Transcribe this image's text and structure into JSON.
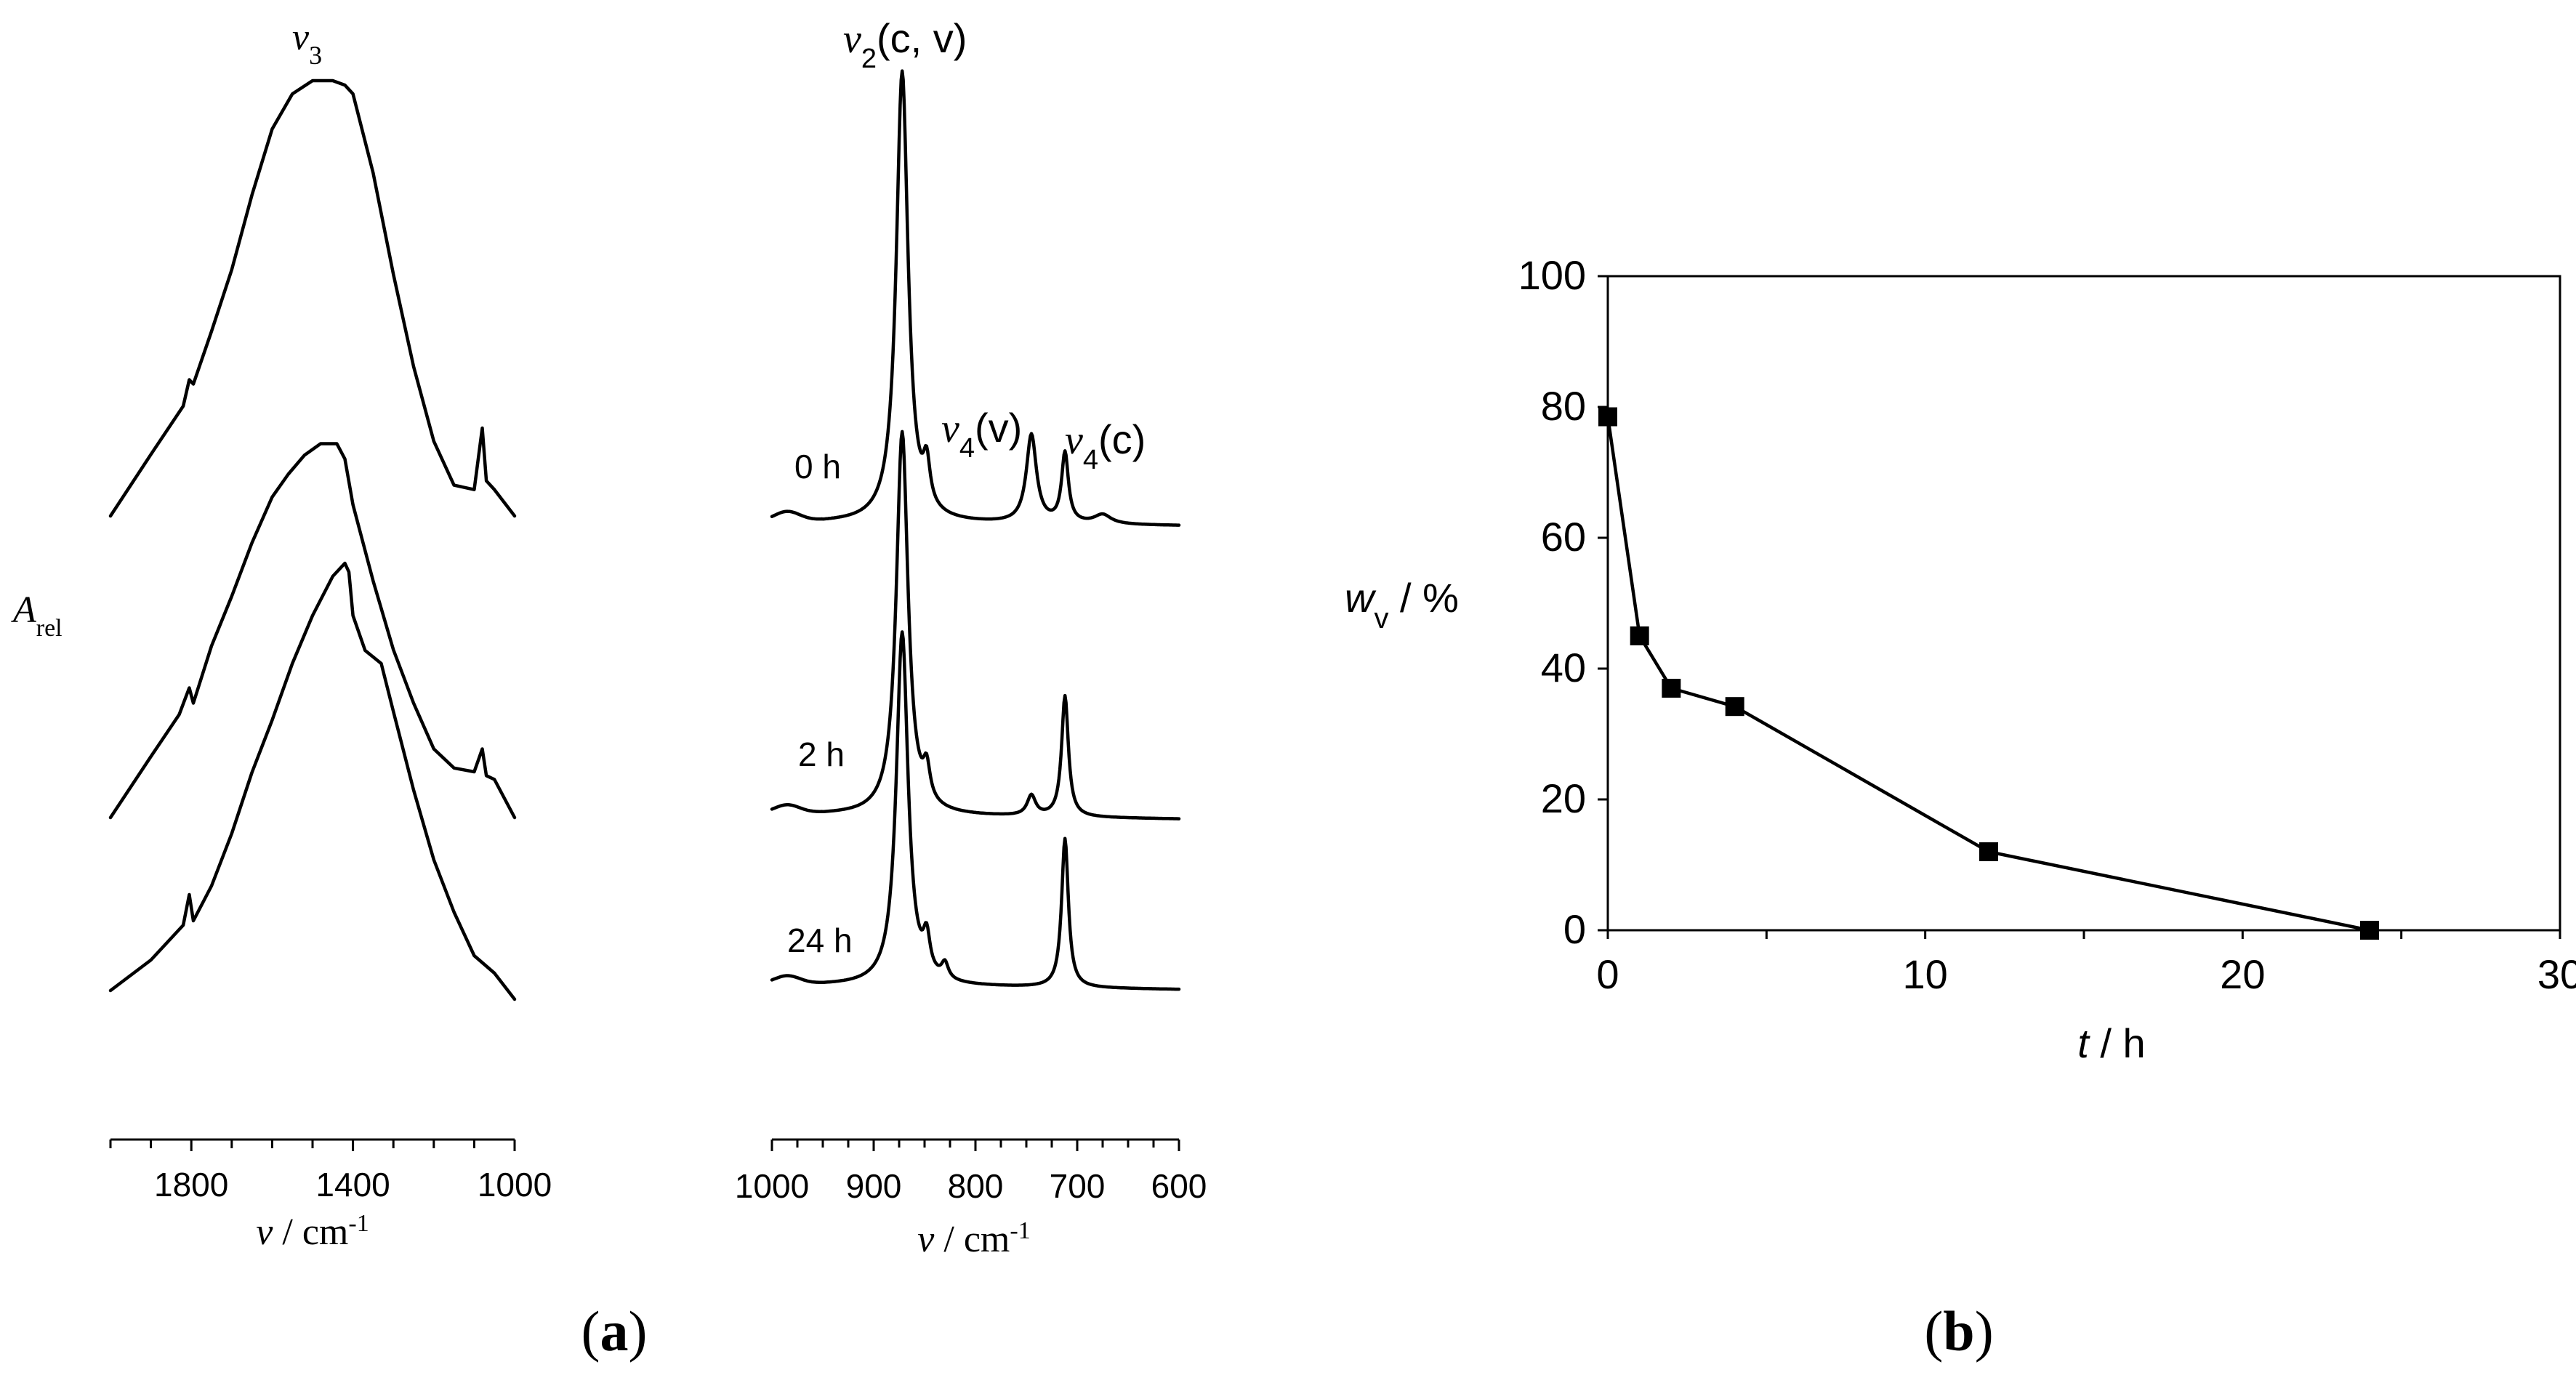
{
  "panel_labels": {
    "a": "a",
    "b": "b"
  },
  "chart_data": [
    {
      "type": "line",
      "name": "IR spectra, v3 region",
      "annotation": "v3",
      "ylabel_main": "A",
      "ylabel_sub": "rel",
      "xlabel_symbol": "ν",
      "xlabel_unit": " / cm",
      "xlabel_exp": "-1",
      "xlim": [
        2000,
        1000
      ],
      "x_ticks": [
        "1800",
        "1400",
        "1000"
      ],
      "x_tick_values": [
        1800,
        1400,
        1000
      ],
      "series": [
        {
          "name": "0 h",
          "x": [
            2000,
            1900,
            1820,
            1805,
            1795,
            1750,
            1700,
            1650,
            1600,
            1550,
            1500,
            1450,
            1420,
            1400,
            1350,
            1300,
            1250,
            1200,
            1150,
            1100,
            1080,
            1070,
            1050,
            1000
          ],
          "y": [
            0.0,
            0.14,
            0.25,
            0.31,
            0.3,
            0.42,
            0.56,
            0.73,
            0.88,
            0.96,
            0.99,
            0.99,
            0.98,
            0.96,
            0.78,
            0.55,
            0.34,
            0.17,
            0.07,
            0.06,
            0.2,
            0.08,
            0.06,
            0.0
          ]
        },
        {
          "name": "2 h",
          "x": [
            2000,
            1900,
            1830,
            1805,
            1795,
            1750,
            1700,
            1650,
            1600,
            1560,
            1520,
            1480,
            1440,
            1420,
            1400,
            1350,
            1300,
            1250,
            1200,
            1150,
            1100,
            1080,
            1070,
            1050,
            1000
          ],
          "y": [
            0.0,
            0.16,
            0.27,
            0.34,
            0.3,
            0.45,
            0.58,
            0.72,
            0.84,
            0.9,
            0.95,
            0.98,
            0.98,
            0.94,
            0.82,
            0.62,
            0.44,
            0.3,
            0.18,
            0.13,
            0.12,
            0.18,
            0.11,
            0.1,
            0.0
          ]
        },
        {
          "name": "24 h",
          "x": [
            2000,
            1900,
            1820,
            1805,
            1795,
            1750,
            1700,
            1650,
            1600,
            1550,
            1500,
            1450,
            1420,
            1410,
            1400,
            1370,
            1330,
            1300,
            1250,
            1200,
            1150,
            1100,
            1050,
            1000
          ],
          "y": [
            0.02,
            0.09,
            0.17,
            0.24,
            0.18,
            0.26,
            0.38,
            0.52,
            0.64,
            0.77,
            0.88,
            0.97,
            1.0,
            0.98,
            0.88,
            0.8,
            0.77,
            0.66,
            0.48,
            0.32,
            0.2,
            0.1,
            0.06,
            0.0
          ]
        }
      ]
    },
    {
      "type": "line",
      "name": "IR spectra, v2 / v4 region",
      "annotations": [
        {
          "sym": "ν",
          "sub": "2",
          "rest": "(c, v)"
        },
        {
          "sym": "ν",
          "sub": "4",
          "rest": "(v)"
        },
        {
          "sym": "ν",
          "sub": "4",
          "rest": "(c)"
        }
      ],
      "xlabel_symbol": "ν",
      "xlabel_unit": " / cm",
      "xlabel_exp": "-1",
      "xlim": [
        1000,
        600
      ],
      "x_ticks": [
        "1000",
        "900",
        "800",
        "700",
        "600"
      ],
      "x_tick_values": [
        1000,
        900,
        800,
        700,
        600
      ],
      "series": [
        {
          "name": "0 h",
          "y_rel": {
            "baseline": 0.03,
            "peaks": [
              {
                "x": 872,
                "h": 0.97,
                "w": 7
              },
              {
                "x": 848,
                "h": 0.09,
                "w": 4
              },
              {
                "x": 745,
                "h": 0.19,
                "w": 6
              },
              {
                "x": 712,
                "h": 0.15,
                "w": 4
              },
              {
                "x": 675,
                "h": 0.02,
                "w": 10
              }
            ]
          }
        },
        {
          "name": "2 h",
          "y_rel": {
            "baseline": 0.05,
            "peaks": [
              {
                "x": 872,
                "h": 0.95,
                "w": 7
              },
              {
                "x": 848,
                "h": 0.08,
                "w": 4
              },
              {
                "x": 745,
                "h": 0.05,
                "w": 5
              },
              {
                "x": 712,
                "h": 0.3,
                "w": 4
              }
            ]
          }
        },
        {
          "name": "24 h",
          "y_rel": {
            "baseline": 0.05,
            "peaks": [
              {
                "x": 872,
                "h": 0.9,
                "w": 7
              },
              {
                "x": 848,
                "h": 0.09,
                "w": 4
              },
              {
                "x": 830,
                "h": 0.04,
                "w": 4
              },
              {
                "x": 712,
                "h": 0.38,
                "w": 4
              }
            ]
          }
        }
      ],
      "trace_labels": [
        "0 h",
        "2 h",
        "24 h"
      ]
    },
    {
      "type": "line",
      "name": "Vaterite fraction vs time",
      "x": [
        0,
        1,
        2,
        4,
        12,
        24
      ],
      "y": [
        78.5,
        45,
        37,
        34.2,
        12,
        0
      ],
      "xlim": [
        0,
        30
      ],
      "ylim": [
        0,
        100
      ],
      "x_ticks": [
        "0",
        "10",
        "20",
        "30"
      ],
      "y_ticks": [
        "0",
        "20",
        "40",
        "60",
        "80",
        "100"
      ],
      "ylabel_main": "w",
      "ylabel_sub": "v",
      "ylabel_rest": " / %",
      "xlabel_main": "t",
      "xlabel_rest": " / h",
      "marker": "square",
      "grid": false
    }
  ]
}
